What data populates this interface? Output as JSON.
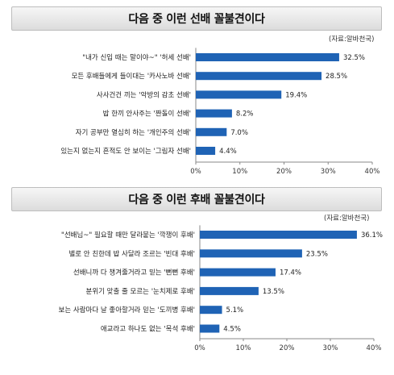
{
  "charts": [
    {
      "title": "다음 중 이런 선배 꼴불견이다",
      "source": "(자료:알바천국)",
      "chart_data": {
        "type": "bar",
        "orientation": "horizontal",
        "categories": [
          "\"내가 신입 때는 말이야~\" '허세 선배'",
          "모든 후배들에게 들이대는 '카사노바 선배'",
          "사사건건 끼는 '악방의 감초 선배'",
          "밥 한끼 안사주는 '짠돌이 선배'",
          "자기 공부만 열심히 하는 '개인주의 선배'",
          "있는지 없는지 흔적도 안 보이는 '그림자 선배'"
        ],
        "values": [
          32.5,
          28.5,
          19.4,
          8.2,
          7.0,
          4.4
        ],
        "value_labels": [
          "32.5%",
          "28.5%",
          "19.4%",
          "8.2%",
          "7.0%",
          "4.4%"
        ],
        "xlim": [
          0,
          40
        ],
        "ticks": [
          "0%",
          "10%",
          "20%",
          "30%",
          "40%"
        ],
        "bar_color": "#1f63b5"
      }
    },
    {
      "title": "다음 중 이런 후배 꼴불견이다",
      "source": "(자료:알바천국)",
      "chart_data": {
        "type": "bar",
        "orientation": "horizontal",
        "categories": [
          "\"선배님~\" 필요할 때만 달라붙는 '깍쟁이 후배'",
          "별로 안 친한데 밥 사달라 조르는 '빈대 후배'",
          "선배니까 다 챙겨줄거라고 믿는 '뻔뻔 후배'",
          "분위기 맞출 줄 모르는 '눈치제로 후배'",
          "보는 사람마다 날 좋아할거라 믿는 '도끼병 후배'",
          "애교라고 하나도 없는 '목석 후배'"
        ],
        "values": [
          36.1,
          23.5,
          17.4,
          13.5,
          5.1,
          4.5
        ],
        "value_labels": [
          "36.1%",
          "23.5%",
          "17.4%",
          "13.5%",
          "5.1%",
          "4.5%"
        ],
        "xlim": [
          0,
          40
        ],
        "ticks": [
          "0%",
          "10%",
          "20%",
          "30%",
          "40%"
        ],
        "bar_color": "#1f63b5"
      }
    }
  ]
}
